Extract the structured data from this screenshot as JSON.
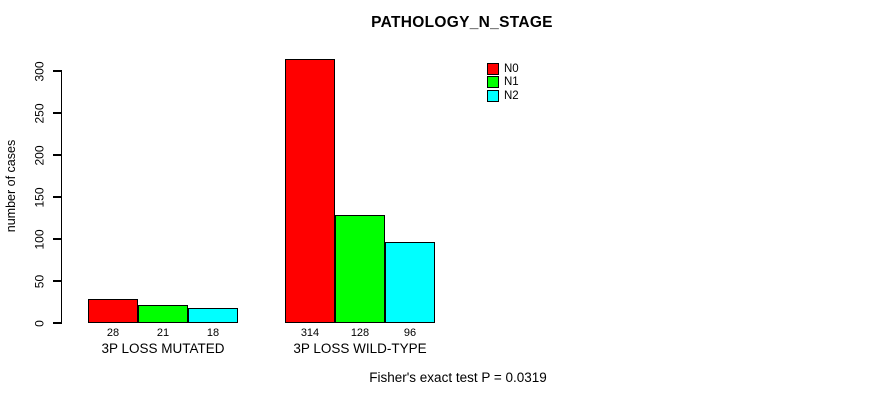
{
  "title": "PATHOLOGY_N_STAGE",
  "footer": "Fisher's exact test P = 0.0319",
  "chart_data": {
    "type": "bar",
    "title": "PATHOLOGY_N_STAGE",
    "xlabel": "",
    "ylabel": "number of cases",
    "categories": [
      "3P LOSS MUTATED",
      "3P LOSS WILD-TYPE"
    ],
    "series": [
      {
        "name": "N0",
        "color": "#FF0000",
        "values": [
          28,
          314
        ]
      },
      {
        "name": "N1",
        "color": "#00FF00",
        "values": [
          21,
          128
        ]
      },
      {
        "name": "N2",
        "color": "#00FFFF",
        "values": [
          18,
          96
        ]
      }
    ],
    "value_labels_shown": true,
    "yticks": [
      0,
      50,
      100,
      150,
      200,
      250,
      300
    ],
    "ylim": [
      0,
      300
    ],
    "grid": false,
    "legend_position": "top-right",
    "annotation": "Fisher's exact test P = 0.0319"
  }
}
